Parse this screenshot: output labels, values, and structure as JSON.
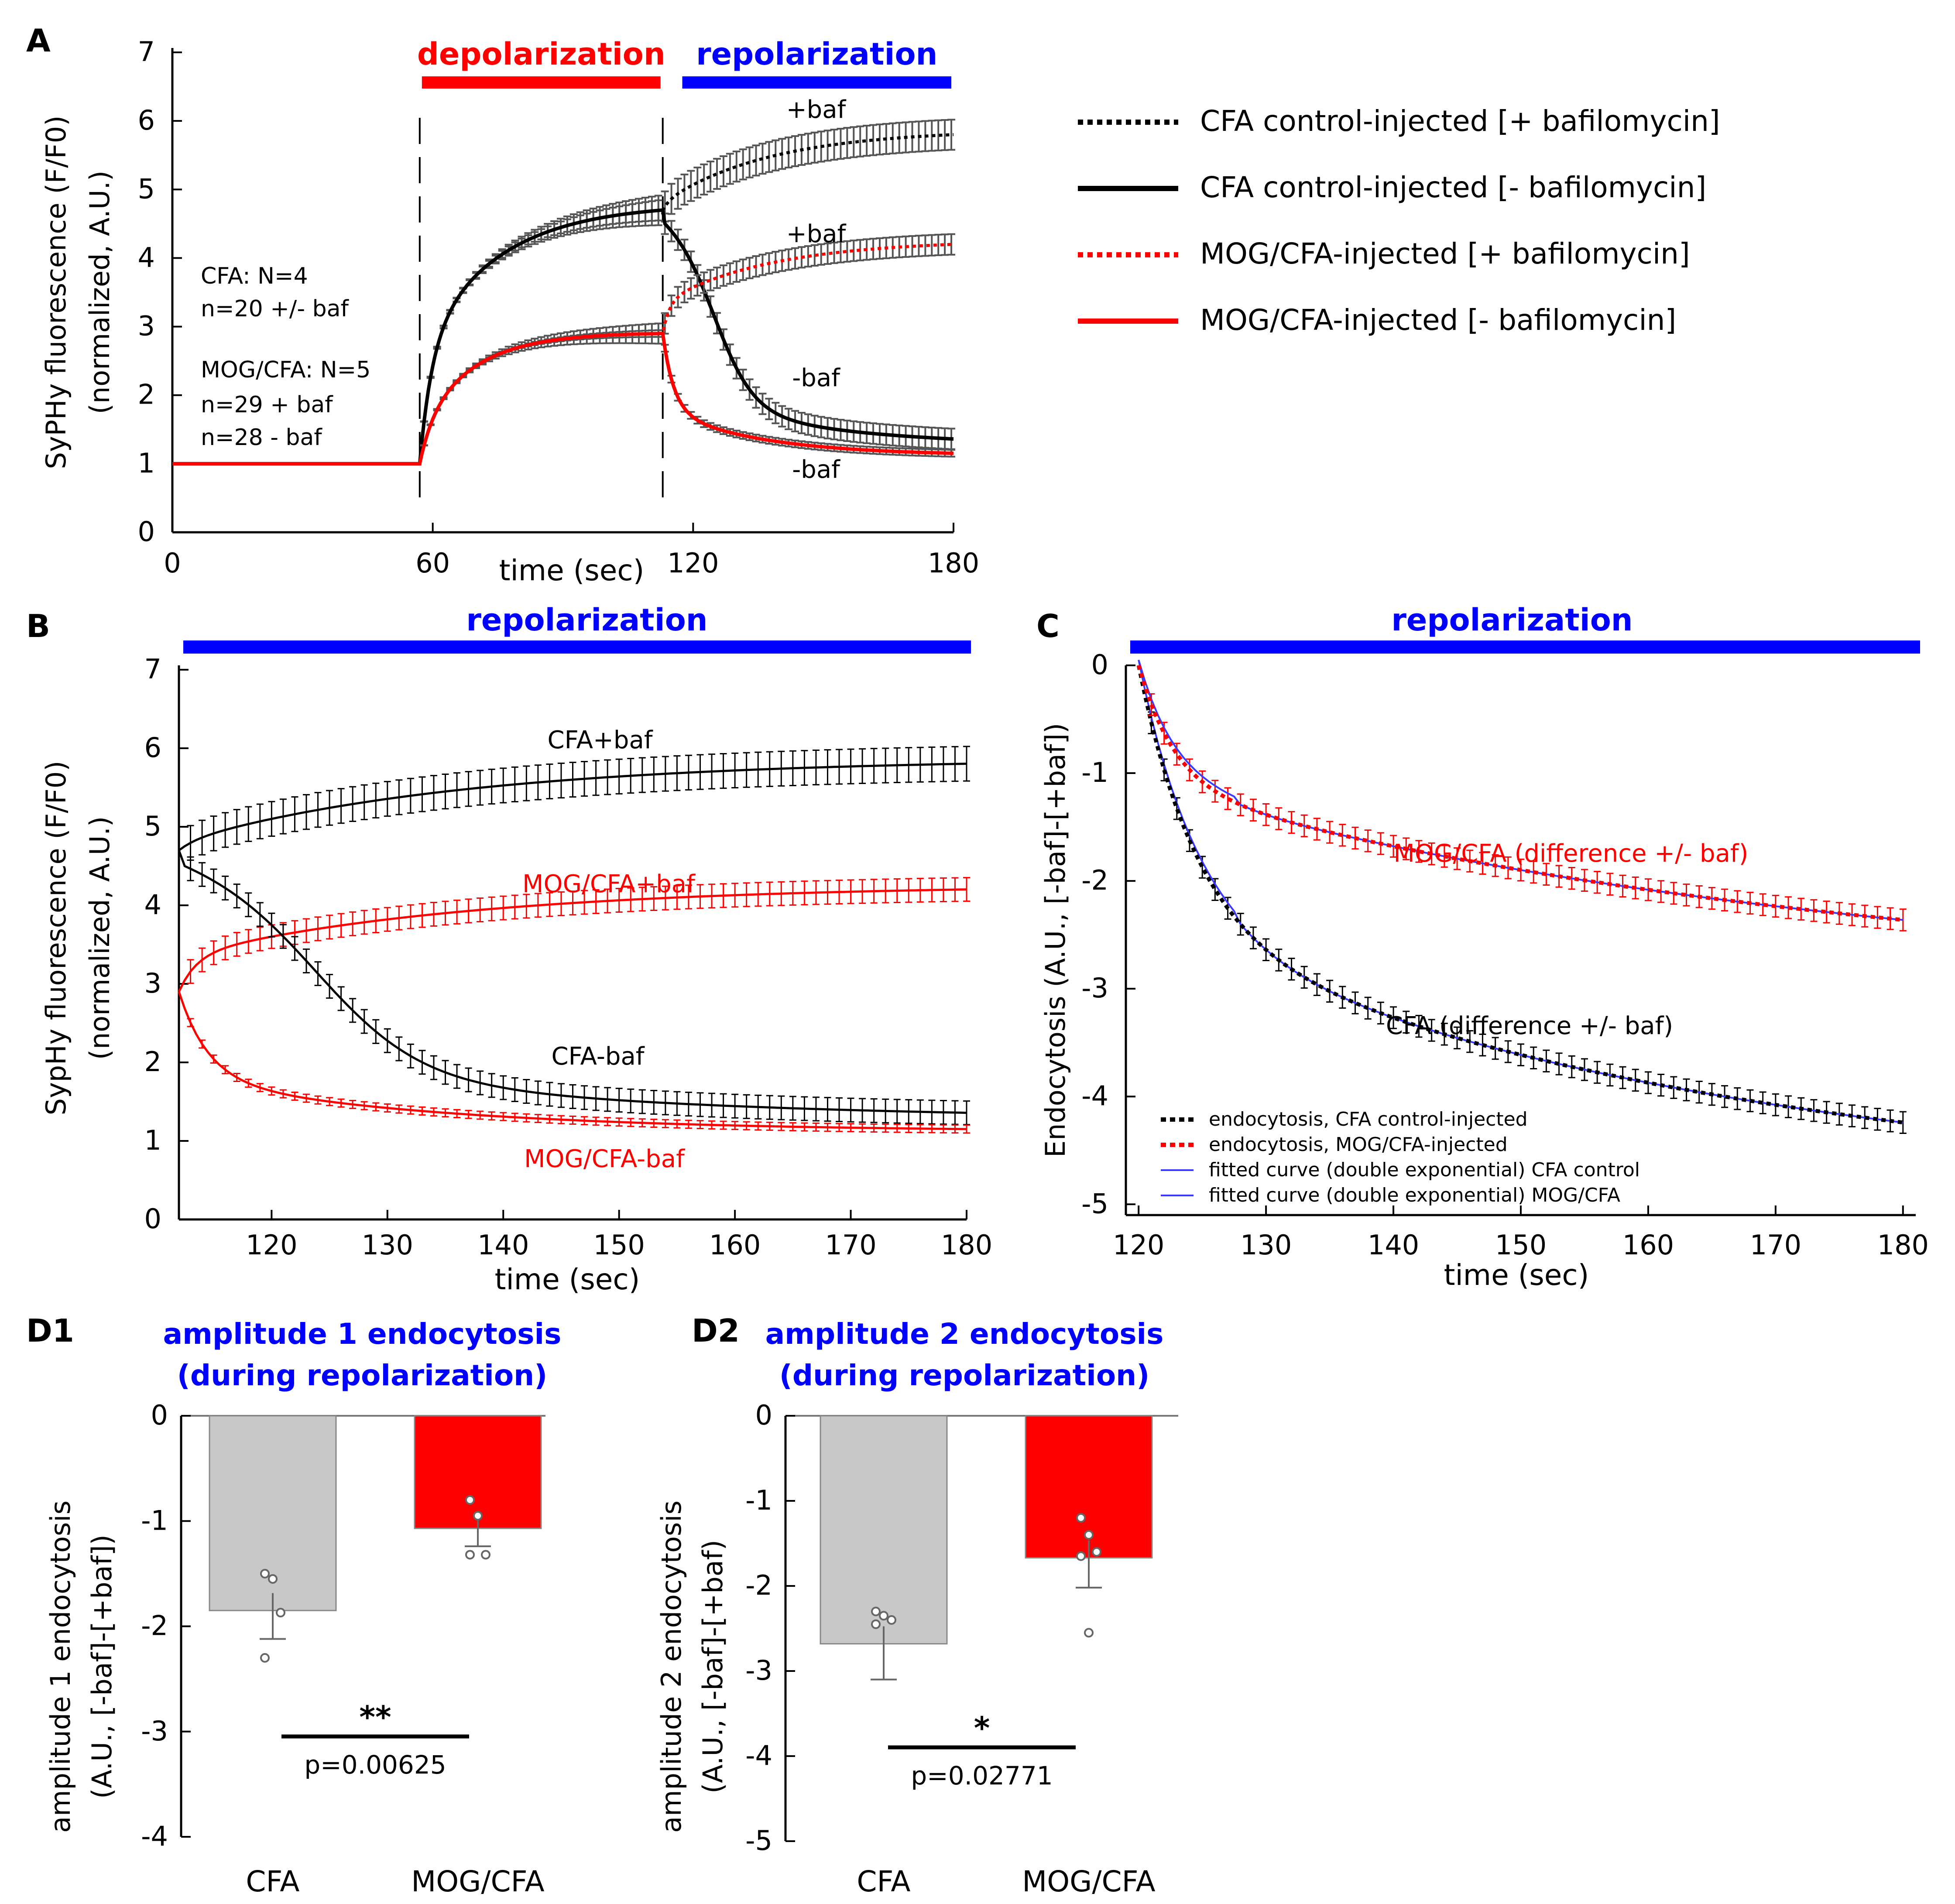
{
  "colors": {
    "cfa": "#000000",
    "cfa_err": "#555555",
    "mog": "#ff0000",
    "blue": "#0000ff",
    "grey_bar": "#c8c8c8",
    "red_bar": "#ff0000",
    "fit": "#3a3aff"
  },
  "chart_data": [
    {
      "panel": "A",
      "type": "line",
      "xlabel": "time (sec)",
      "ylabel": [
        "SyPHy fluorescence (F/F0)",
        "(normalized, A.U.)"
      ],
      "xlim": [
        0,
        180
      ],
      "ylim": [
        0,
        7
      ],
      "xticks": [
        0,
        60,
        120,
        180
      ],
      "yticks": [
        0,
        1,
        2,
        3,
        4,
        5,
        6,
        7
      ],
      "phases": [
        {
          "label": "depolarization",
          "x0": 57,
          "x1": 113,
          "color": "#ff0000"
        },
        {
          "label": "repolarization",
          "x0": 117,
          "x1": 180,
          "color": "#0000ff"
        }
      ],
      "dashed_vlines": [
        57,
        113
      ],
      "stim_start": 57,
      "repol_start": 113,
      "series": [
        {
          "name": "CFA control-injected [+ bafilomycin]",
          "group": "CFA",
          "baf": true,
          "dotted": true,
          "peak": 4.7,
          "final": 5.8,
          "err": 0.22
        },
        {
          "name": "CFA control-injected [- bafilomycin]",
          "group": "CFA",
          "baf": false,
          "dotted": false,
          "peak": 4.7,
          "final": 1.27,
          "err": 0.15
        },
        {
          "name": "MOG/CFA-injected [+ bafilomycin]",
          "group": "MOG",
          "baf": true,
          "dotted": true,
          "peak": 2.9,
          "final": 4.2,
          "err": 0.15
        },
        {
          "name": "MOG/CFA-injected [- bafilomycin]",
          "group": "MOG",
          "baf": false,
          "dotted": false,
          "peak": 2.9,
          "final": 1.12,
          "err": 0.05
        }
      ],
      "curve_labels": [
        "+baf",
        "+baf",
        "-baf",
        "-baf"
      ],
      "stats_text": [
        "CFA: N=4",
        "n=20 +/- baf",
        "MOG/CFA: N=5",
        "n=29 + baf",
        "n=28 - baf"
      ]
    },
    {
      "panel": "B",
      "type": "line",
      "title": "repolarization",
      "xlabel": "time (sec)",
      "ylabel": [
        "SypHy fluorescence (F/F0)",
        "(normalized, A.U.)"
      ],
      "xlim": [
        112,
        180
      ],
      "ylim": [
        0,
        7
      ],
      "xticks": [
        120,
        130,
        140,
        150,
        160,
        170,
        180
      ],
      "yticks": [
        0,
        1,
        2,
        3,
        4,
        5,
        6,
        7
      ],
      "series": [
        {
          "name": "CFA+baf",
          "group": "CFA",
          "start": 4.7,
          "final": 5.8,
          "err": 0.22
        },
        {
          "name": "MOG/CFA+baf",
          "group": "MOG",
          "start": 2.9,
          "final": 4.2,
          "err": 0.15
        },
        {
          "name": "CFA-baf",
          "group": "CFA",
          "start": 4.7,
          "final": 1.27,
          "err": 0.15
        },
        {
          "name": "MOG/CFA-baf",
          "group": "MOG",
          "start": 2.9,
          "final": 1.12,
          "err": 0.05
        }
      ]
    },
    {
      "panel": "C",
      "type": "line",
      "title": "repolarization",
      "xlabel": "time (sec)",
      "ylabel": [
        "Endocytosis (A.U., [-baf]-[+baf])"
      ],
      "xlim": [
        119,
        181
      ],
      "ylim": [
        -5.1,
        0
      ],
      "xticks": [
        120,
        130,
        140,
        150,
        160,
        170,
        180
      ],
      "yticks": [
        0,
        -1,
        -2,
        -3,
        -4,
        -5
      ],
      "series": [
        {
          "name": "CFA (difference +/- baf)",
          "group": "CFA",
          "a1": -2.4,
          "tau1": 4.5,
          "a2": -2.5,
          "tau2": 45,
          "err": 0.1
        },
        {
          "name": "MOG/CFA (difference +/- baf)",
          "group": "MOG",
          "a1": -1.1,
          "tau1": 2.8,
          "a2": -1.9,
          "tau2": 55,
          "err": 0.1
        }
      ],
      "legend": [
        {
          "label": "endocytosis, CFA control-injected",
          "style": "dotted",
          "color": "#000000"
        },
        {
          "label": "endocytosis, MOG/CFA-injected",
          "style": "dotted",
          "color": "#ff0000"
        },
        {
          "label": "fitted curve (double exponential) CFA control",
          "style": "solid",
          "color": "#3a3aff"
        },
        {
          "label": "fitted curve (double exponential) MOG/CFA",
          "style": "solid",
          "color": "#3a3aff"
        }
      ]
    },
    {
      "panel": "D1",
      "type": "bar",
      "title": [
        "amplitude 1 endocytosis",
        "(during repolarization)"
      ],
      "ylabel": [
        "amplitude 1 endocytosis",
        "(A.U., [-baf]-[+baf])"
      ],
      "categories": [
        "CFA",
        "MOG/CFA"
      ],
      "values": [
        -1.85,
        -1.07
      ],
      "sem": [
        0.27,
        0.17
      ],
      "points": [
        [
          -1.5,
          -1.55,
          -1.87,
          -2.3
        ],
        [
          -0.8,
          -0.95,
          -1.32,
          -1.32
        ]
      ],
      "ylim": [
        -4,
        0
      ],
      "yticks": [
        0,
        -1,
        -2,
        -3,
        -4
      ],
      "significance": "**",
      "p_text": "p=0.00625"
    },
    {
      "panel": "D2",
      "type": "bar",
      "title": [
        "amplitude 2 endocytosis",
        "(during repolarization)"
      ],
      "ylabel": [
        "amplitude 2 endocytosis",
        "(A.U., [-baf]-[+baf)"
      ],
      "categories": [
        "CFA",
        "MOG/CFA"
      ],
      "values": [
        -2.68,
        -1.67
      ],
      "sem": [
        0.42,
        0.35
      ],
      "points": [
        [
          -2.3,
          -2.35,
          -2.4,
          -2.45
        ],
        [
          -1.2,
          -1.4,
          -1.6,
          -1.65,
          -2.55
        ]
      ],
      "ylim": [
        -5,
        0
      ],
      "yticks": [
        0,
        -1,
        -2,
        -3,
        -4,
        -5
      ],
      "significance": "*",
      "p_text": "p=0.02771"
    }
  ]
}
